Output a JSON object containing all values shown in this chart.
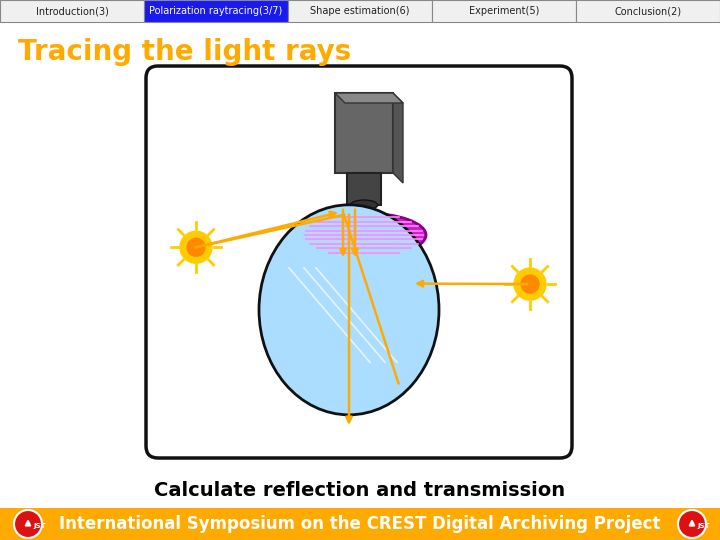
{
  "bg_color": "#ffffff",
  "nav_items": [
    "Introduction(3)",
    "Polarization raytracing(3/7)",
    "Shape estimation(6)",
    "Experiment(5)",
    "Conclusion(2)"
  ],
  "nav_active_idx": 1,
  "nav_active_bg": "#1a1aee",
  "nav_active_fg": "#ffffff",
  "nav_inactive_bg": "#f0f0f0",
  "nav_inactive_fg": "#222222",
  "nav_border": "#888888",
  "title": "Tracing the light rays",
  "title_color": "#ffaa00",
  "title_fontsize": 20,
  "subtitle": "Calculate reflection and transmission",
  "subtitle_color": "#000000",
  "subtitle_fontsize": 14,
  "footer_text": "International Symposium on the CREST Digital Archiving Project",
  "footer_bg": "#ffaa00",
  "footer_fg": "#ffffff",
  "footer_fontsize": 12,
  "box_color": "#111111",
  "box_bg": "#ffffff",
  "ray_color": "#ffaa00",
  "sun_outer": "#ffcc00",
  "sun_inner": "#ff8800",
  "sphere_color": "#aaddff",
  "sphere_edge": "#111111",
  "cam_body": "#666666",
  "cam_lens": "#444444",
  "pol_fill": "#cc22cc",
  "pol_edge": "#880088",
  "pol_lines": "#ff88ff"
}
